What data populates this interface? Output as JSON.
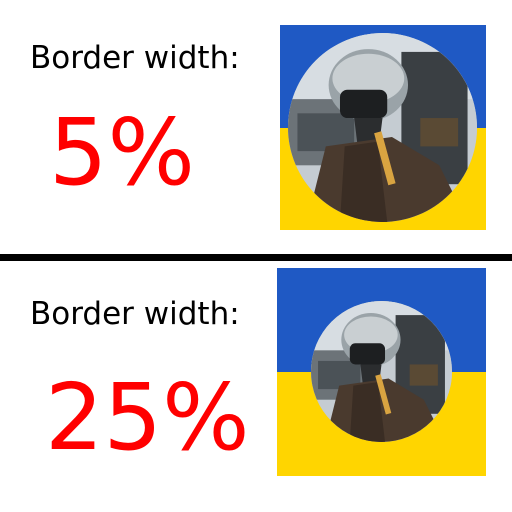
{
  "colors": {
    "value_text": "#ff0000",
    "label_text": "#000000",
    "divider": "#000000",
    "flag_blue": "#1f59c4",
    "flag_yellow": "#ffd500"
  },
  "panels": [
    {
      "label": "Border width:",
      "value": "5%",
      "border_width_percent": 5
    },
    {
      "label": "Border width:",
      "value": "25%",
      "border_width_percent": 25
    }
  ],
  "icons": {
    "avatar": "pilot-in-helmet-photo"
  }
}
